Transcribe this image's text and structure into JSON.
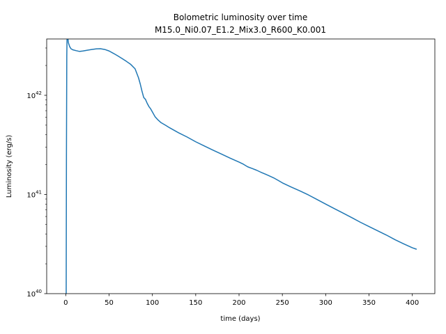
{
  "chart_data": {
    "type": "line",
    "title": "Bolometric luminosity  over time",
    "subtitle": "M15.0_Ni0.07_E1.2_Mix3.0_R600_K0.001",
    "xlabel": "time (days)",
    "ylabel": "Luminosity (erg/s)",
    "xlim": [
      -22,
      426
    ],
    "ylim": [
      1e+40,
      3.7e+42
    ],
    "yscale": "log",
    "grid": false,
    "line_color": "#1f77b4",
    "x_ticks": [
      0,
      50,
      100,
      150,
      200,
      250,
      300,
      350,
      400
    ],
    "x_tick_labels": [
      "0",
      "50",
      "100",
      "150",
      "200",
      "250",
      "300",
      "350",
      "400"
    ],
    "y_ticks": [
      {
        "value": 1e+40,
        "base": "10",
        "exp": "40"
      },
      {
        "value": 1e+41,
        "base": "10",
        "exp": "41"
      },
      {
        "value": 1e+42,
        "base": "10",
        "exp": "42"
      }
    ],
    "series": [
      {
        "x": [
          0.5,
          0.8,
          1.2,
          1.6,
          2.0,
          3.0,
          4.5,
          6,
          8,
          12,
          16,
          20,
          25,
          30,
          35,
          40,
          45,
          50,
          55,
          60,
          65,
          70,
          75,
          80,
          84,
          86,
          88,
          90,
          92,
          94,
          96,
          98,
          100,
          103,
          106,
          110,
          115,
          120,
          130,
          140,
          150,
          160,
          170,
          180,
          190,
          200,
          205,
          210,
          215,
          220,
          225,
          230,
          235,
          240,
          245,
          250,
          260,
          270,
          280,
          290,
          300,
          310,
          320,
          330,
          340,
          350,
          360,
          370,
          380,
          390,
          400,
          405
        ],
        "y": [
          1e+40,
          2.5e+41,
          2.5e+42,
          4.5e+42,
          4.2e+42,
          3.4e+42,
          3.1e+42,
          2.95e+42,
          2.88e+42,
          2.82e+42,
          2.77e+42,
          2.8e+42,
          2.85e+42,
          2.9e+42,
          2.94e+42,
          2.95e+42,
          2.9e+42,
          2.8e+42,
          2.65e+42,
          2.5e+42,
          2.35e+42,
          2.2e+42,
          2.05e+42,
          1.85e+42,
          1.5e+42,
          1.3e+42,
          1.1e+42,
          9.5e+41,
          9.1e+41,
          8.3e+41,
          7.7e+41,
          7.3e+41,
          6.8e+41,
          6.1e+41,
          5.7e+41,
          5.3e+41,
          5e+41,
          4.7e+41,
          4.2e+41,
          3.8e+41,
          3.4e+41,
          3.08e+41,
          2.8e+41,
          2.55e+41,
          2.32e+41,
          2.12e+41,
          2.02e+41,
          1.9e+41,
          1.83e+41,
          1.76e+41,
          1.68e+41,
          1.61e+41,
          1.54e+41,
          1.47e+41,
          1.39e+41,
          1.31e+41,
          1.19e+41,
          1.09e+41,
          9.9e+40,
          8.9e+40,
          8e+40,
          7.2e+40,
          6.5e+40,
          5.85e+40,
          5.25e+40,
          4.75e+40,
          4.3e+40,
          3.9e+40,
          3.5e+40,
          3.18e+40,
          2.9e+40,
          2.8e+40
        ]
      }
    ]
  }
}
